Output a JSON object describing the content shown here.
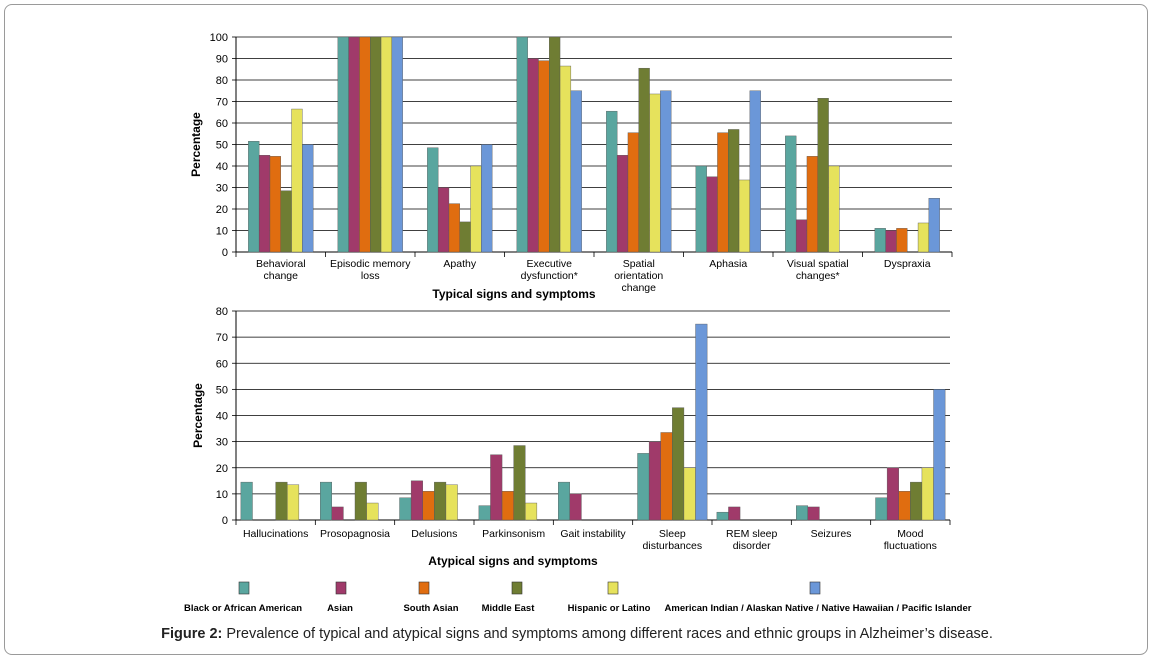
{
  "figure": {
    "label": "Figure 2:",
    "text": "Prevalence of typical and atypical signs and symptoms among different races and ethnic groups in Alzheimer’s disease."
  },
  "legend": [
    {
      "name": "Black or African American",
      "color": "#5aa69f"
    },
    {
      "name": "Asian",
      "color": "#a03a6a"
    },
    {
      "name": "South Asian",
      "color": "#e06d10"
    },
    {
      "name": "Middle East",
      "color": "#6f7d33"
    },
    {
      "name": "Hispanic or Latino",
      "color": "#e6e25c"
    },
    {
      "name": "American Indian / Alaskan Native / Native Hawaiian / Pacific Islander",
      "color": "#6b97d8"
    }
  ],
  "chart_data": [
    {
      "type": "bar",
      "xlabel": "Typical signs and symptoms",
      "ylabel": "Percentage",
      "ylim": [
        0,
        100
      ],
      "yticks": [
        0,
        10,
        20,
        30,
        40,
        50,
        60,
        70,
        80,
        90,
        100
      ],
      "grid": true,
      "categories": [
        [
          "Behavioral",
          "change"
        ],
        [
          "Episodic memory",
          "loss"
        ],
        [
          "Apathy"
        ],
        [
          "Executive",
          "dysfunction*"
        ],
        [
          "Spatial",
          "orientation",
          "change"
        ],
        [
          "Aphasia"
        ],
        [
          "Visual spatial",
          "changes*"
        ],
        [
          "Dyspraxia"
        ]
      ],
      "series": [
        {
          "name": "Black or African American",
          "values": [
            51.5,
            100,
            48.5,
            100,
            65.5,
            40,
            54,
            11
          ]
        },
        {
          "name": "Asian",
          "values": [
            45,
            100,
            30,
            90,
            45,
            35,
            15,
            10
          ]
        },
        {
          "name": "South Asian",
          "values": [
            44.5,
            100,
            22.5,
            89,
            55.5,
            55.5,
            44.5,
            11
          ]
        },
        {
          "name": "Middle East",
          "values": [
            28.5,
            100,
            14,
            100,
            85.5,
            57,
            71.5,
            0
          ]
        },
        {
          "name": "Hispanic or Latino",
          "values": [
            66.5,
            100,
            40,
            86.5,
            73.5,
            33.5,
            40,
            13.5
          ]
        },
        {
          "name": "American Indian / Alaskan Native / Native Hawaiian / Pacific Islander",
          "values": [
            50,
            100,
            50,
            75,
            75,
            75,
            0,
            25
          ]
        }
      ]
    },
    {
      "type": "bar",
      "xlabel": "Atypical signs and symptoms",
      "ylabel": "Percentage",
      "ylim": [
        0,
        80
      ],
      "yticks": [
        0,
        10,
        20,
        30,
        40,
        50,
        60,
        70,
        80
      ],
      "grid": true,
      "categories": [
        [
          "Hallucinations"
        ],
        [
          "Prosopagnosia"
        ],
        [
          "Delusions"
        ],
        [
          "Parkinsonism"
        ],
        [
          "Gait instability"
        ],
        [
          "Sleep",
          "disturbances"
        ],
        [
          "REM sleep",
          "disorder"
        ],
        [
          "Seizures"
        ],
        [
          "Mood",
          "fluctuations"
        ]
      ],
      "series": [
        {
          "name": "Black or African American",
          "values": [
            14.5,
            14.5,
            8.5,
            5.5,
            14.5,
            25.5,
            3,
            5.5,
            8.5
          ]
        },
        {
          "name": "Asian",
          "values": [
            0,
            5,
            15,
            25,
            10,
            30,
            5,
            5,
            20
          ]
        },
        {
          "name": "South Asian",
          "values": [
            0,
            0,
            11,
            11,
            0,
            33.5,
            0,
            0,
            11
          ]
        },
        {
          "name": "Middle East",
          "values": [
            14.5,
            14.5,
            14.5,
            28.5,
            0,
            43,
            0,
            0,
            14.5
          ]
        },
        {
          "name": "Hispanic or Latino",
          "values": [
            13.5,
            6.5,
            13.5,
            6.5,
            0,
            20,
            0,
            0,
            20
          ]
        },
        {
          "name": "American Indian / Alaskan Native / Native Hawaiian / Pacific Islander",
          "values": [
            0,
            0,
            0,
            0,
            0,
            75,
            0,
            0,
            50
          ]
        }
      ]
    }
  ]
}
